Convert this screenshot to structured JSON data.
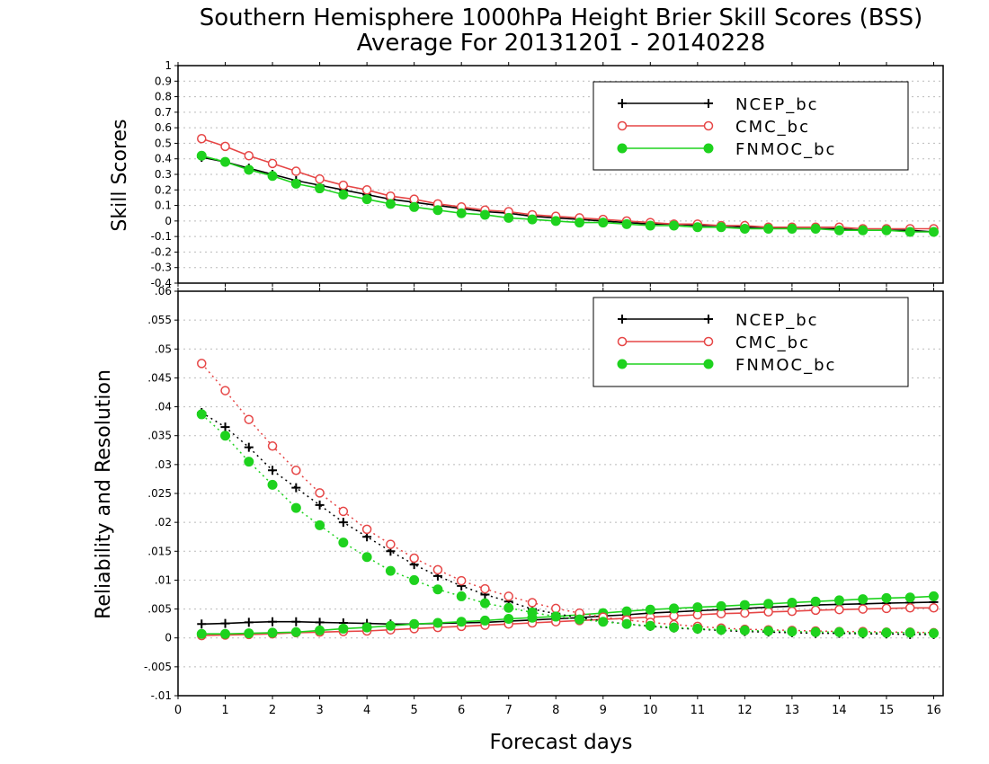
{
  "title_line1": "Southern Hemisphere 1000hPa Height Brier Skill Scores (BSS)",
  "title_line2": "Average For 20131201 - 20140228",
  "xlabel": "Forecast days",
  "colors": {
    "NCEP_bc": "#000000",
    "CMC_bc": "#e64646",
    "FNMOC_bc": "#1ed21e",
    "grid": "#bbbbbb"
  },
  "chart_data": [
    {
      "type": "line",
      "panel": "top",
      "ylabel": "Skill Scores",
      "xlim": [
        0,
        16.2
      ],
      "ylim": [
        -0.4,
        1
      ],
      "grid": "horizontal dotted",
      "legend_position": "top-right",
      "x_ticks": [
        0,
        1,
        2,
        3,
        4,
        5,
        6,
        7,
        8,
        9,
        10,
        11,
        12,
        13,
        14,
        15,
        16
      ],
      "y_ticks": [
        -0.4,
        -0.3,
        -0.2,
        -0.1,
        0,
        0.1,
        0.2,
        0.3,
        0.4,
        0.5,
        0.6,
        0.7,
        0.8,
        0.9,
        1
      ],
      "x": [
        0.5,
        1,
        1.5,
        2,
        2.5,
        3,
        3.5,
        4,
        4.5,
        5,
        5.5,
        6,
        6.5,
        7,
        7.5,
        8,
        8.5,
        9,
        9.5,
        10,
        10.5,
        11,
        11.5,
        12,
        12.5,
        13,
        13.5,
        14,
        14.5,
        15,
        15.5,
        16
      ],
      "series": [
        {
          "name": "NCEP_bc",
          "marker": "plus",
          "style": "solid",
          "values": [
            0.41,
            0.38,
            0.34,
            0.3,
            0.26,
            0.23,
            0.2,
            0.17,
            0.14,
            0.12,
            0.1,
            0.08,
            0.06,
            0.05,
            0.03,
            0.02,
            0.01,
            0.0,
            -0.01,
            -0.02,
            -0.02,
            -0.03,
            -0.03,
            -0.04,
            -0.04,
            -0.05,
            -0.05,
            -0.05,
            -0.06,
            -0.06,
            -0.06,
            -0.07
          ]
        },
        {
          "name": "CMC_bc",
          "marker": "open-circle",
          "style": "solid",
          "values": [
            0.53,
            0.48,
            0.42,
            0.37,
            0.32,
            0.27,
            0.23,
            0.2,
            0.16,
            0.14,
            0.11,
            0.09,
            0.07,
            0.06,
            0.04,
            0.03,
            0.02,
            0.01,
            0.0,
            -0.01,
            -0.02,
            -0.02,
            -0.03,
            -0.03,
            -0.04,
            -0.04,
            -0.04,
            -0.04,
            -0.05,
            -0.05,
            -0.05,
            -0.05
          ]
        },
        {
          "name": "FNMOC_bc",
          "marker": "filled-circle",
          "style": "solid",
          "values": [
            0.42,
            0.38,
            0.33,
            0.29,
            0.24,
            0.21,
            0.17,
            0.14,
            0.11,
            0.09,
            0.07,
            0.05,
            0.04,
            0.02,
            0.01,
            0.0,
            -0.01,
            -0.01,
            -0.02,
            -0.03,
            -0.03,
            -0.04,
            -0.04,
            -0.05,
            -0.05,
            -0.05,
            -0.05,
            -0.06,
            -0.06,
            -0.06,
            -0.07,
            -0.07
          ]
        }
      ]
    },
    {
      "type": "line",
      "panel": "bottom",
      "ylabel": "Reliability and Resolution",
      "xlim": [
        0,
        16.2
      ],
      "ylim": [
        -0.01,
        0.06
      ],
      "grid": "horizontal dotted",
      "legend_position": "top-right",
      "x_ticks": [
        0,
        1,
        2,
        3,
        4,
        5,
        6,
        7,
        8,
        9,
        10,
        11,
        12,
        13,
        14,
        15,
        16
      ],
      "y_ticks": [
        -0.01,
        -0.005,
        0,
        0.005,
        0.01,
        0.015,
        0.02,
        0.025,
        0.03,
        0.035,
        0.04,
        0.045,
        0.05,
        0.055,
        0.06
      ],
      "x": [
        0.5,
        1,
        1.5,
        2,
        2.5,
        3,
        3.5,
        4,
        4.5,
        5,
        5.5,
        6,
        6.5,
        7,
        7.5,
        8,
        8.5,
        9,
        9.5,
        10,
        10.5,
        11,
        11.5,
        12,
        12.5,
        13,
        13.5,
        14,
        14.5,
        15,
        15.5,
        16
      ],
      "series": [
        {
          "name": "NCEP_bc",
          "marker": "plus",
          "style": "solid",
          "values": [
            0.0024,
            0.0025,
            0.0027,
            0.0028,
            0.0028,
            0.0027,
            0.0026,
            0.0025,
            0.0024,
            0.0024,
            0.0025,
            0.0026,
            0.0027,
            0.0029,
            0.0031,
            0.0033,
            0.0035,
            0.0038,
            0.004,
            0.0043,
            0.0045,
            0.0047,
            0.0049,
            0.0051,
            0.0053,
            0.0055,
            0.0057,
            0.0058,
            0.0059,
            0.006,
            0.0061,
            0.0062
          ]
        },
        {
          "name": "CMC_bc",
          "marker": "open-circle",
          "style": "solid",
          "values": [
            0.0004,
            0.0005,
            0.0006,
            0.0007,
            0.0009,
            0.001,
            0.0011,
            0.0012,
            0.0014,
            0.0016,
            0.0018,
            0.002,
            0.0022,
            0.0024,
            0.0026,
            0.0028,
            0.003,
            0.0032,
            0.0034,
            0.0036,
            0.0038,
            0.004,
            0.0042,
            0.0043,
            0.0045,
            0.0046,
            0.0048,
            0.0049,
            0.005,
            0.0051,
            0.0052,
            0.0052
          ]
        },
        {
          "name": "FNMOC_bc",
          "marker": "filled-circle",
          "style": "solid",
          "values": [
            0.0007,
            0.0007,
            0.0008,
            0.0009,
            0.001,
            0.0013,
            0.0016,
            0.0018,
            0.0021,
            0.0024,
            0.0026,
            0.0028,
            0.003,
            0.0033,
            0.0035,
            0.0037,
            0.004,
            0.0043,
            0.0046,
            0.0049,
            0.0051,
            0.0053,
            0.0055,
            0.0057,
            0.0059,
            0.0061,
            0.0063,
            0.0065,
            0.0067,
            0.0069,
            0.007,
            0.0072
          ]
        },
        {
          "name": "NCEP_bc",
          "marker": "plus",
          "style": "dotted",
          "values": [
            0.039,
            0.0365,
            0.033,
            0.029,
            0.026,
            0.023,
            0.02,
            0.0175,
            0.015,
            0.0127,
            0.0107,
            0.009,
            0.0075,
            0.0063,
            0.005,
            0.0042,
            0.0035,
            0.0029,
            0.0024,
            0.002,
            0.0017,
            0.0015,
            0.0013,
            0.0011,
            0.001,
            0.0009,
            0.0008,
            0.0008,
            0.0007,
            0.0007,
            0.0006,
            0.0006
          ]
        },
        {
          "name": "CMC_bc",
          "marker": "open-circle",
          "style": "dotted",
          "values": [
            0.0475,
            0.0428,
            0.0378,
            0.0332,
            0.029,
            0.0251,
            0.0219,
            0.0188,
            0.0162,
            0.0138,
            0.0118,
            0.0099,
            0.0085,
            0.0072,
            0.0061,
            0.0051,
            0.0043,
            0.0036,
            0.0031,
            0.0027,
            0.0023,
            0.002,
            0.0017,
            0.0015,
            0.0014,
            0.0013,
            0.0012,
            0.0011,
            0.0011,
            0.001,
            0.001,
            0.0009
          ]
        },
        {
          "name": "FNMOC_bc",
          "marker": "filled-circle",
          "style": "dotted",
          "values": [
            0.0387,
            0.035,
            0.0305,
            0.0265,
            0.0225,
            0.0195,
            0.0165,
            0.014,
            0.0116,
            0.01,
            0.0084,
            0.0072,
            0.006,
            0.0052,
            0.0044,
            0.0037,
            0.0032,
            0.0028,
            0.0024,
            0.0021,
            0.0018,
            0.0016,
            0.0014,
            0.0013,
            0.0012,
            0.0011,
            0.001,
            0.001,
            0.0009,
            0.0009,
            0.0009,
            0.0008
          ]
        }
      ]
    }
  ],
  "legends": [
    {
      "entries": [
        "NCEP_bc",
        "CMC_bc",
        "FNMOC_bc"
      ]
    },
    {
      "entries": [
        "NCEP_bc",
        "CMC_bc",
        "FNMOC_bc"
      ]
    }
  ]
}
